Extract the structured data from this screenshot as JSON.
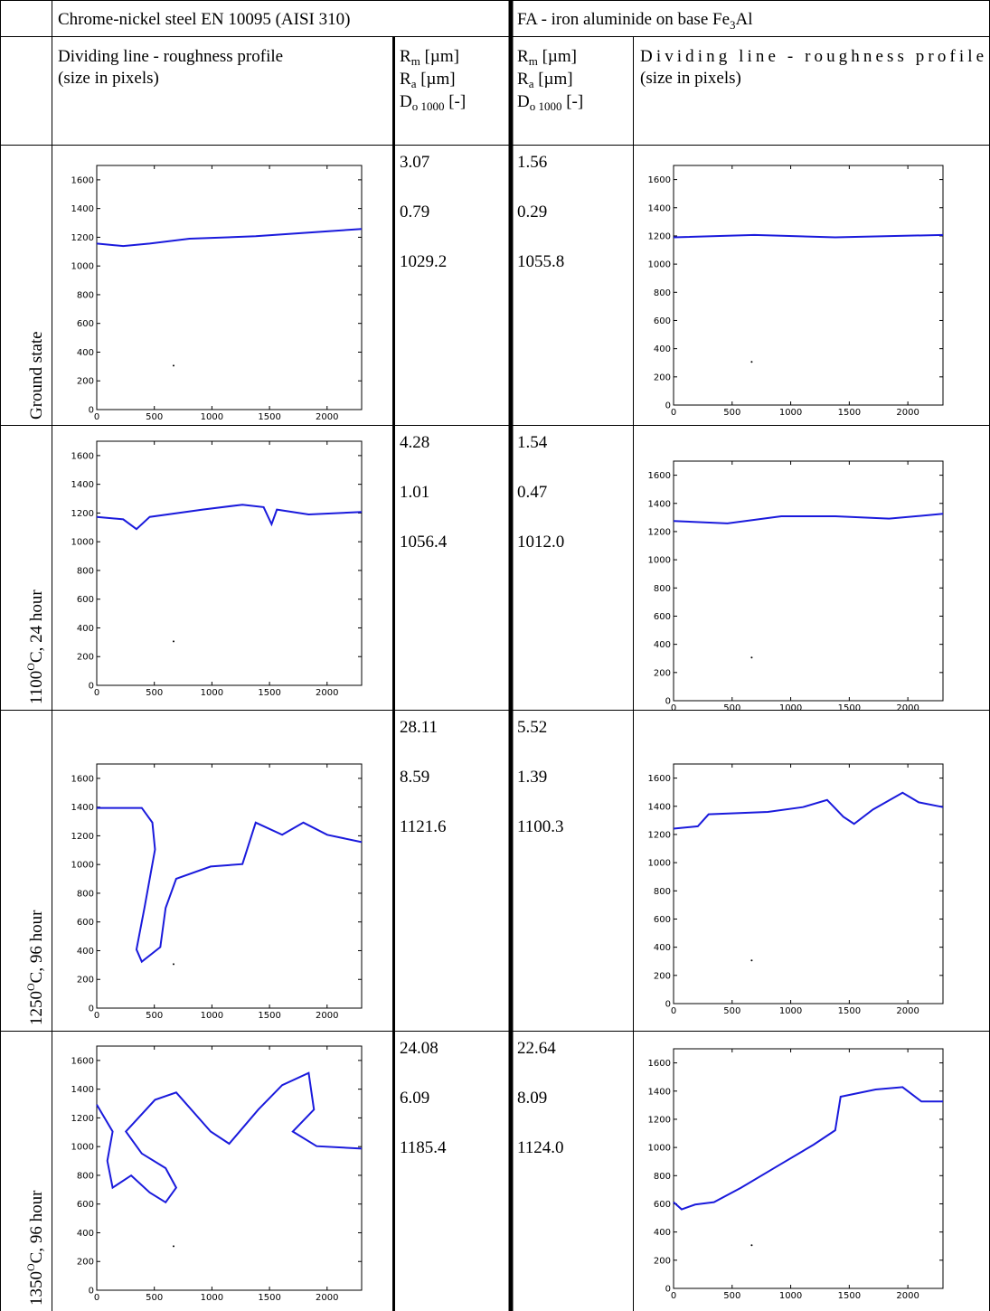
{
  "header": {
    "steel": "Chrome-nickel steel EN 10095 (AISI 310)",
    "fa": {
      "text": "FA - iron aluminide on base Fe",
      "sub": "3",
      "after": "Al"
    },
    "profile": [
      "Dividing line - roughness profile",
      "(size in pixels)"
    ],
    "params": [
      {
        "sym": "R",
        "sub": "m",
        "unit": " [µm]"
      },
      {
        "sym": "R",
        "sub": "a",
        "unit": " [µm]"
      },
      {
        "sym": "D",
        "sub": "o 1000",
        "unit": " [-]"
      }
    ]
  },
  "plot_axes": {
    "xlim": [
      0,
      2300
    ],
    "ylim": [
      0,
      1700
    ],
    "xticks": [
      0,
      500,
      1000,
      1500,
      2000
    ],
    "yticks": [
      0,
      200,
      400,
      600,
      800,
      1000,
      1200,
      1400,
      1600
    ],
    "line_color": "#1a1adc"
  },
  "rows": [
    {
      "label": {
        "text": "Ground state"
      },
      "steel": [
        "3.07",
        "0.79",
        "1029.2"
      ],
      "fa": [
        "1.56",
        "0.29",
        "1055.8"
      ]
    },
    {
      "label": {
        "text": "1100",
        "sup": "O",
        "after": "C, 24 hour"
      },
      "steel": [
        "4.28",
        "1.01",
        "1056.4"
      ],
      "fa": [
        "1.54",
        "0.47",
        "1012.0"
      ]
    },
    {
      "label": {
        "text": "1250",
        "sup": "O",
        "after": "C, 96 hour"
      },
      "steel": [
        "28.11",
        "8.59",
        "1121.6"
      ],
      "fa": [
        "5.52",
        "1.39",
        "1100.3"
      ]
    },
    {
      "label": {
        "text": "1350",
        "sup": "O",
        "after": "C, 96 hour"
      },
      "steel": [
        "24.08",
        "6.09",
        "1185.4"
      ],
      "fa": [
        "22.64",
        "8.09",
        "1124.0"
      ]
    }
  ]
}
